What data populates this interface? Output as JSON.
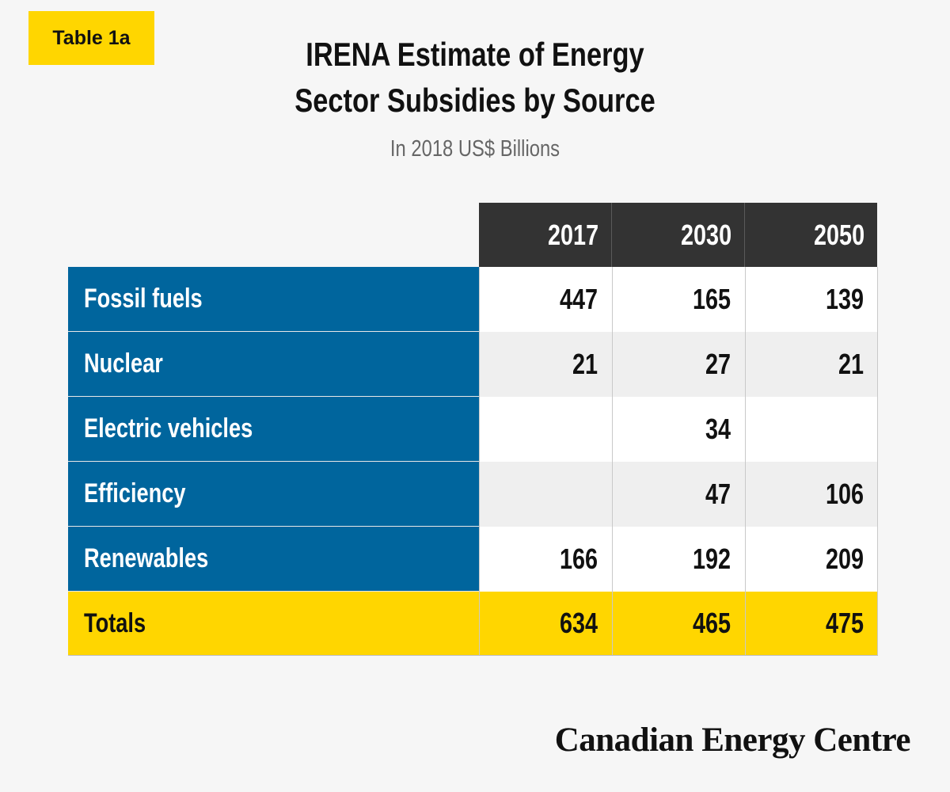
{
  "tag": "Table 1a",
  "title_line1": "IRENA Estimate of Energy",
  "title_line2": "Sector Subsidies by Source",
  "subtitle": "In 2018 US$ Billions",
  "footer": "Canadian Energy Centre",
  "colors": {
    "header_bg": "#333333",
    "label_bg": "#00659d",
    "totals_bg": "#ffd600",
    "row_alt_bg": "#efefef",
    "row_bg": "#ffffff"
  },
  "chart_data": {
    "type": "table",
    "title": "IRENA Estimate of Energy Sector Subsidies by Source",
    "subtitle": "In 2018 US$ Billions",
    "columns": [
      "2017",
      "2030",
      "2050"
    ],
    "rows": [
      {
        "label": "Fossil fuels",
        "values": [
          "447",
          "165",
          "139"
        ]
      },
      {
        "label": "Nuclear",
        "values": [
          "21",
          "27",
          "21"
        ]
      },
      {
        "label": "Electric vehicles",
        "values": [
          "",
          "34",
          ""
        ]
      },
      {
        "label": "Efficiency",
        "values": [
          "",
          "47",
          "106"
        ]
      },
      {
        "label": "Renewables",
        "values": [
          "166",
          "192",
          "209"
        ]
      }
    ],
    "totals": {
      "label": "Totals",
      "values": [
        "634",
        "465",
        "475"
      ]
    }
  }
}
